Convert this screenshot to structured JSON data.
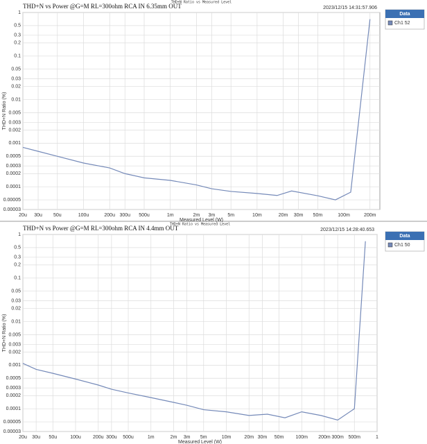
{
  "chart_data": [
    {
      "type": "line",
      "title": "THD+N vs Power @G=M RL=300ohm RCA IN 6.35mm OUT",
      "subtitle": "THD+N Ratio vs Measured Level",
      "timestamp": "2023/12/15 14:31:57.906",
      "legend_title": "Data",
      "x_label": "Measured Level (W)",
      "y_label": "THD+N Ratio (%)",
      "x_scale": "log",
      "y_scale": "log",
      "grid": true,
      "x": [
        2e-05,
        3e-05,
        5e-05,
        0.0001,
        0.0002,
        0.0003,
        0.0005,
        0.001,
        0.002,
        0.003,
        0.005,
        0.01,
        0.017,
        0.025,
        0.05,
        0.08,
        0.12,
        0.2
      ],
      "series": [
        {
          "name": "Ch1 52",
          "color": "#7489b8",
          "values": [
            0.0008,
            0.00065,
            0.0005,
            0.00035,
            0.00027,
            0.0002,
            0.00016,
            0.00014,
            0.00011,
            9e-05,
            7.8e-05,
            7e-05,
            6.3e-05,
            8e-05,
            6.2e-05,
            5e-05,
            7.5e-05,
            0.7
          ]
        }
      ],
      "xlim": [
        2e-05,
        0.26
      ],
      "ylim": [
        3e-05,
        1
      ],
      "xticks": [
        {
          "value": 2e-05,
          "label": "20u"
        },
        {
          "value": 3e-05,
          "label": "30u"
        },
        {
          "value": 5e-05,
          "label": "50u"
        },
        {
          "value": 0.0001,
          "label": "100u"
        },
        {
          "value": 0.0002,
          "label": "200u"
        },
        {
          "value": 0.0003,
          "label": "300u"
        },
        {
          "value": 0.0005,
          "label": "500u"
        },
        {
          "value": 0.001,
          "label": "1m"
        },
        {
          "value": 0.002,
          "label": "2m"
        },
        {
          "value": 0.003,
          "label": "3m"
        },
        {
          "value": 0.005,
          "label": "5m"
        },
        {
          "value": 0.01,
          "label": "10m"
        },
        {
          "value": 0.02,
          "label": "20m"
        },
        {
          "value": 0.03,
          "label": "30m"
        },
        {
          "value": 0.05,
          "label": "50m"
        },
        {
          "value": 0.1,
          "label": "100m"
        },
        {
          "value": 0.2,
          "label": "200m"
        }
      ],
      "yticks": [
        1,
        0.5,
        0.3,
        0.2,
        0.1,
        0.05,
        0.03,
        0.02,
        0.01,
        0.005,
        0.003,
        0.002,
        0.001,
        0.0005,
        0.0003,
        0.0002,
        0.0001,
        5e-05,
        3e-05
      ]
    },
    {
      "type": "line",
      "title": "THD+N vs Power @G=M RL=300ohm RCA IN 4.4mm OUT",
      "subtitle": "THD+N Ratio vs Measured Level",
      "timestamp": "2023/12/15 14:28:40.653",
      "legend_title": "Data",
      "x_label": "Measured Level (W)",
      "y_label": "THD+N Ratio (%)",
      "x_scale": "log",
      "y_scale": "log",
      "grid": true,
      "x": [
        2e-05,
        3e-05,
        5e-05,
        0.0001,
        0.0002,
        0.0003,
        0.0005,
        0.001,
        0.002,
        0.003,
        0.005,
        0.01,
        0.02,
        0.035,
        0.06,
        0.1,
        0.18,
        0.3,
        0.5,
        0.7
      ],
      "series": [
        {
          "name": "Ch1 50",
          "color": "#7489b8",
          "values": [
            0.0011,
            0.0008,
            0.00065,
            0.00048,
            0.00035,
            0.00028,
            0.00023,
            0.00018,
            0.00014,
            0.00012,
            9.5e-05,
            8.5e-05,
            7e-05,
            7.5e-05,
            6.2e-05,
            8.5e-05,
            7e-05,
            5.5e-05,
            0.0001,
            0.7
          ]
        }
      ],
      "xlim": [
        2e-05,
        1
      ],
      "ylim": [
        3e-05,
        1
      ],
      "xticks": [
        {
          "value": 2e-05,
          "label": "20u"
        },
        {
          "value": 3e-05,
          "label": "30u"
        },
        {
          "value": 5e-05,
          "label": "50u"
        },
        {
          "value": 0.0001,
          "label": "100u"
        },
        {
          "value": 0.0002,
          "label": "200u"
        },
        {
          "value": 0.0003,
          "label": "300u"
        },
        {
          "value": 0.0005,
          "label": "500u"
        },
        {
          "value": 0.001,
          "label": "1m"
        },
        {
          "value": 0.002,
          "label": "2m"
        },
        {
          "value": 0.003,
          "label": "3m"
        },
        {
          "value": 0.005,
          "label": "5m"
        },
        {
          "value": 0.01,
          "label": "10m"
        },
        {
          "value": 0.02,
          "label": "20m"
        },
        {
          "value": 0.03,
          "label": "30m"
        },
        {
          "value": 0.05,
          "label": "50m"
        },
        {
          "value": 0.1,
          "label": "100m"
        },
        {
          "value": 0.2,
          "label": "200m"
        },
        {
          "value": 0.3,
          "label": "300m"
        },
        {
          "value": 0.5,
          "label": "500m"
        },
        1
      ],
      "yticks": [
        1,
        0.5,
        0.3,
        0.2,
        0.1,
        0.05,
        0.03,
        0.02,
        0.01,
        0.005,
        0.003,
        0.002,
        0.001,
        0.0005,
        0.0003,
        0.0002,
        0.0001,
        5e-05,
        3e-05
      ]
    }
  ]
}
